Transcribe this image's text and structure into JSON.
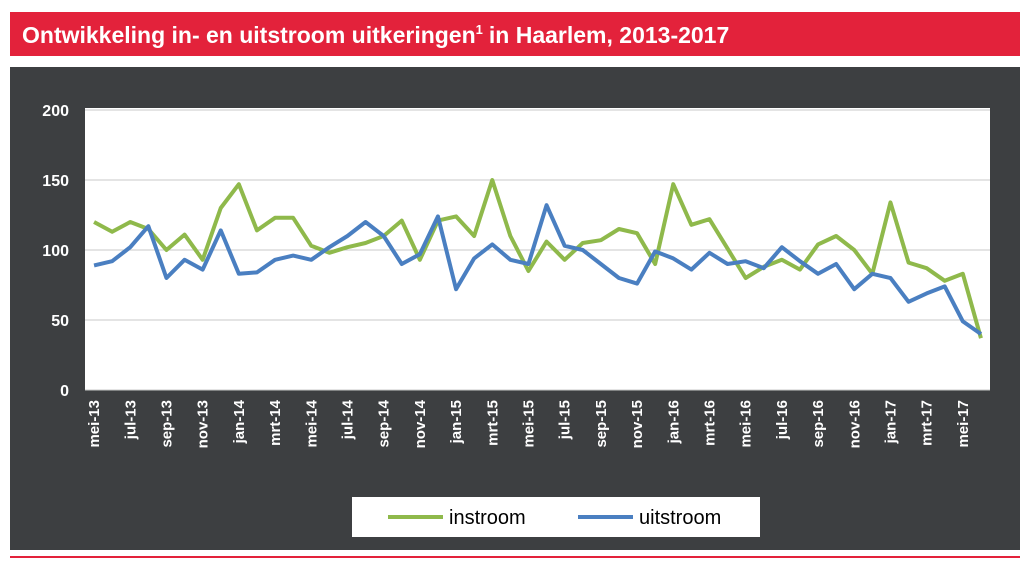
{
  "chart_data": {
    "type": "line",
    "title": "Ontwikkeling in- en uitstroom uitkeringen",
    "title_footnote": "1",
    "title_suffix": "in Haarlem, 2013-2017",
    "categories": [
      "mei-13",
      null,
      "jul-13",
      null,
      "sep-13",
      null,
      "nov-13",
      null,
      "jan-14",
      null,
      "mrt-14",
      null,
      "mei-14",
      null,
      "jul-14",
      null,
      "sep-14",
      null,
      "nov-14",
      null,
      "jan-15",
      null,
      "mrt-15",
      null,
      "mei-15",
      null,
      "jul-15",
      null,
      "sep-15",
      null,
      "nov-15",
      null,
      "jan-16",
      null,
      "mrt-16",
      null,
      "mei-16",
      null,
      "jul-16",
      null,
      "sep-16",
      null,
      "nov-16",
      null,
      "jan-17",
      null,
      "mrt-17",
      null,
      "mei-17",
      null
    ],
    "series": [
      {
        "name": "instroom",
        "color": "#8fb94b",
        "values": [
          120,
          113,
          120,
          115,
          100,
          111,
          93,
          130,
          147,
          114,
          123,
          123,
          103,
          98,
          102,
          105,
          110,
          121,
          93,
          121,
          124,
          110,
          150,
          110,
          85,
          106,
          93,
          105,
          107,
          115,
          112,
          90,
          147,
          118,
          122,
          101,
          80,
          88,
          93,
          86,
          104,
          110,
          100,
          83,
          134,
          91,
          87,
          78,
          83,
          37
        ]
      },
      {
        "name": "uitstroom",
        "color": "#4a7fc1",
        "values": [
          89,
          92,
          102,
          117,
          80,
          93,
          86,
          114,
          83,
          84,
          93,
          96,
          93,
          102,
          110,
          120,
          110,
          90,
          97,
          124,
          72,
          94,
          104,
          93,
          90,
          132,
          103,
          100,
          90,
          80,
          76,
          99,
          94,
          86,
          98,
          90,
          92,
          87,
          102,
          92,
          83,
          90,
          72,
          83,
          80,
          63,
          69,
          74,
          49,
          40
        ]
      }
    ],
    "ylim": [
      0,
      200
    ],
    "yticks": [
      0,
      50,
      100,
      150,
      200
    ],
    "grid": true
  }
}
